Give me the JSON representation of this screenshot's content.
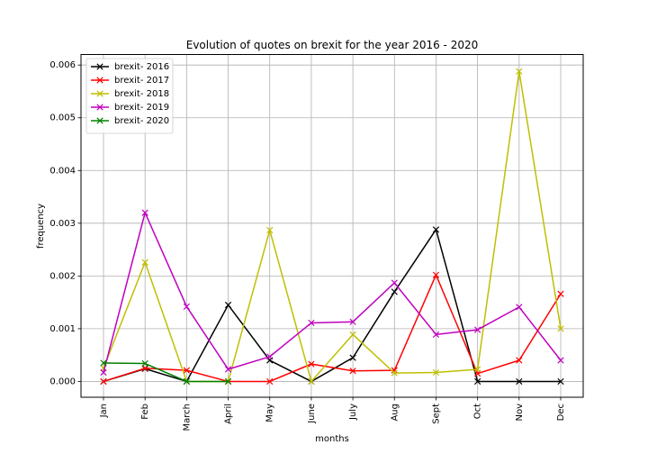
{
  "chart_data": {
    "type": "line",
    "title": "Evolution of quotes on brexit for the year 2016 - 2020",
    "xlabel": "months",
    "ylabel": "frequency",
    "categories": [
      "Jan",
      "Feb",
      "March",
      "April",
      "May",
      "June",
      "July",
      "Aug",
      "Sept",
      "Oct",
      "Nov",
      "Dec"
    ],
    "ylim": [
      -0.0003,
      0.0062
    ],
    "yticks": [
      0.0,
      0.001,
      0.002,
      0.003,
      0.004,
      0.005,
      0.006
    ],
    "ytick_labels": [
      "0.000",
      "0.001",
      "0.002",
      "0.003",
      "0.004",
      "0.005",
      "0.006"
    ],
    "grid": true,
    "legend_position": "top-left",
    "marker": "x",
    "series": [
      {
        "name": "brexit- 2016",
        "color": "#000000",
        "values": [
          0.0,
          0.00024,
          0.0,
          0.00145,
          0.0004,
          0.0,
          0.00045,
          0.0017,
          0.00288,
          0.0,
          0.0,
          0.0
        ]
      },
      {
        "name": "brexit- 2017",
        "color": "#ff0000",
        "values": [
          0.0,
          0.00025,
          0.00021,
          0.0,
          0.0,
          0.00033,
          0.0002,
          0.00021,
          0.00202,
          0.00015,
          0.0004,
          0.00166
        ]
      },
      {
        "name": "brexit- 2018",
        "color": "#bfbf00",
        "values": [
          0.00025,
          0.00226,
          0.0,
          0.0,
          0.00287,
          0.0,
          0.00089,
          0.00016,
          0.00017,
          0.00023,
          0.00588,
          0.001
        ]
      },
      {
        "name": "brexit- 2019",
        "color": "#bf00bf",
        "values": [
          0.00017,
          0.0032,
          0.00142,
          0.00023,
          0.00047,
          0.00111,
          0.00113,
          0.00187,
          0.00089,
          0.00098,
          0.00141,
          0.0004
        ]
      },
      {
        "name": "brexit- 2020",
        "color": "#008000",
        "values": [
          0.00035,
          0.00034,
          0.0,
          0.0,
          null,
          null,
          null,
          null,
          null,
          null,
          null,
          null
        ]
      }
    ]
  }
}
